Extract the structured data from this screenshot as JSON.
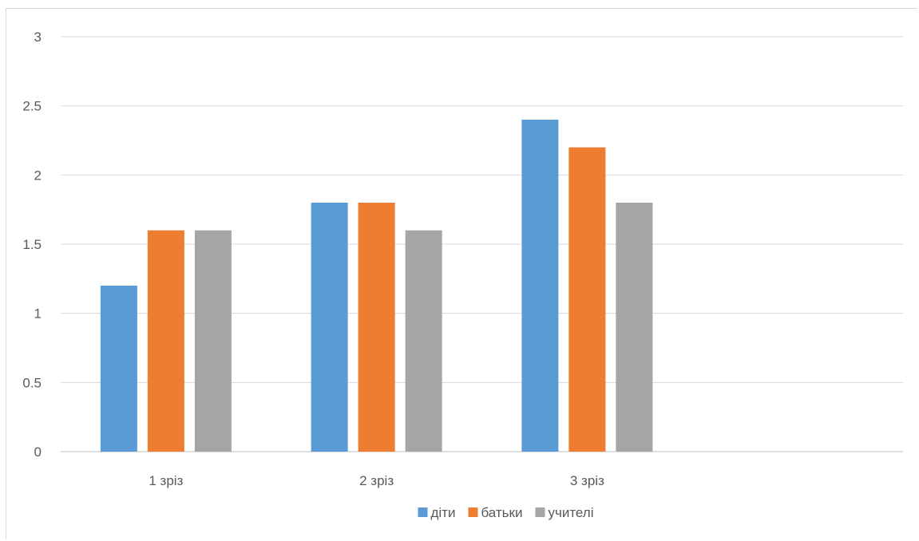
{
  "chart_data": {
    "type": "bar",
    "categories": [
      "1 зріз",
      "2 зріз",
      "3 зріз",
      ""
    ],
    "series": [
      {
        "name": "діти",
        "color": "#5B9BD5",
        "values": [
          1.2,
          1.8,
          2.4,
          null
        ]
      },
      {
        "name": "батьки",
        "color": "#ED7D31",
        "values": [
          1.6,
          1.8,
          2.2,
          null
        ]
      },
      {
        "name": "учителі",
        "color": "#A5A5A5",
        "values": [
          1.6,
          1.6,
          1.8,
          null
        ]
      }
    ],
    "ylim": [
      0,
      3
    ],
    "yticks": [
      "0",
      "0.5",
      "1",
      "1.5",
      "2",
      "2.5",
      "3"
    ],
    "grid": true,
    "legend_position": "bottom",
    "title": "",
    "xlabel": "",
    "ylabel": ""
  }
}
